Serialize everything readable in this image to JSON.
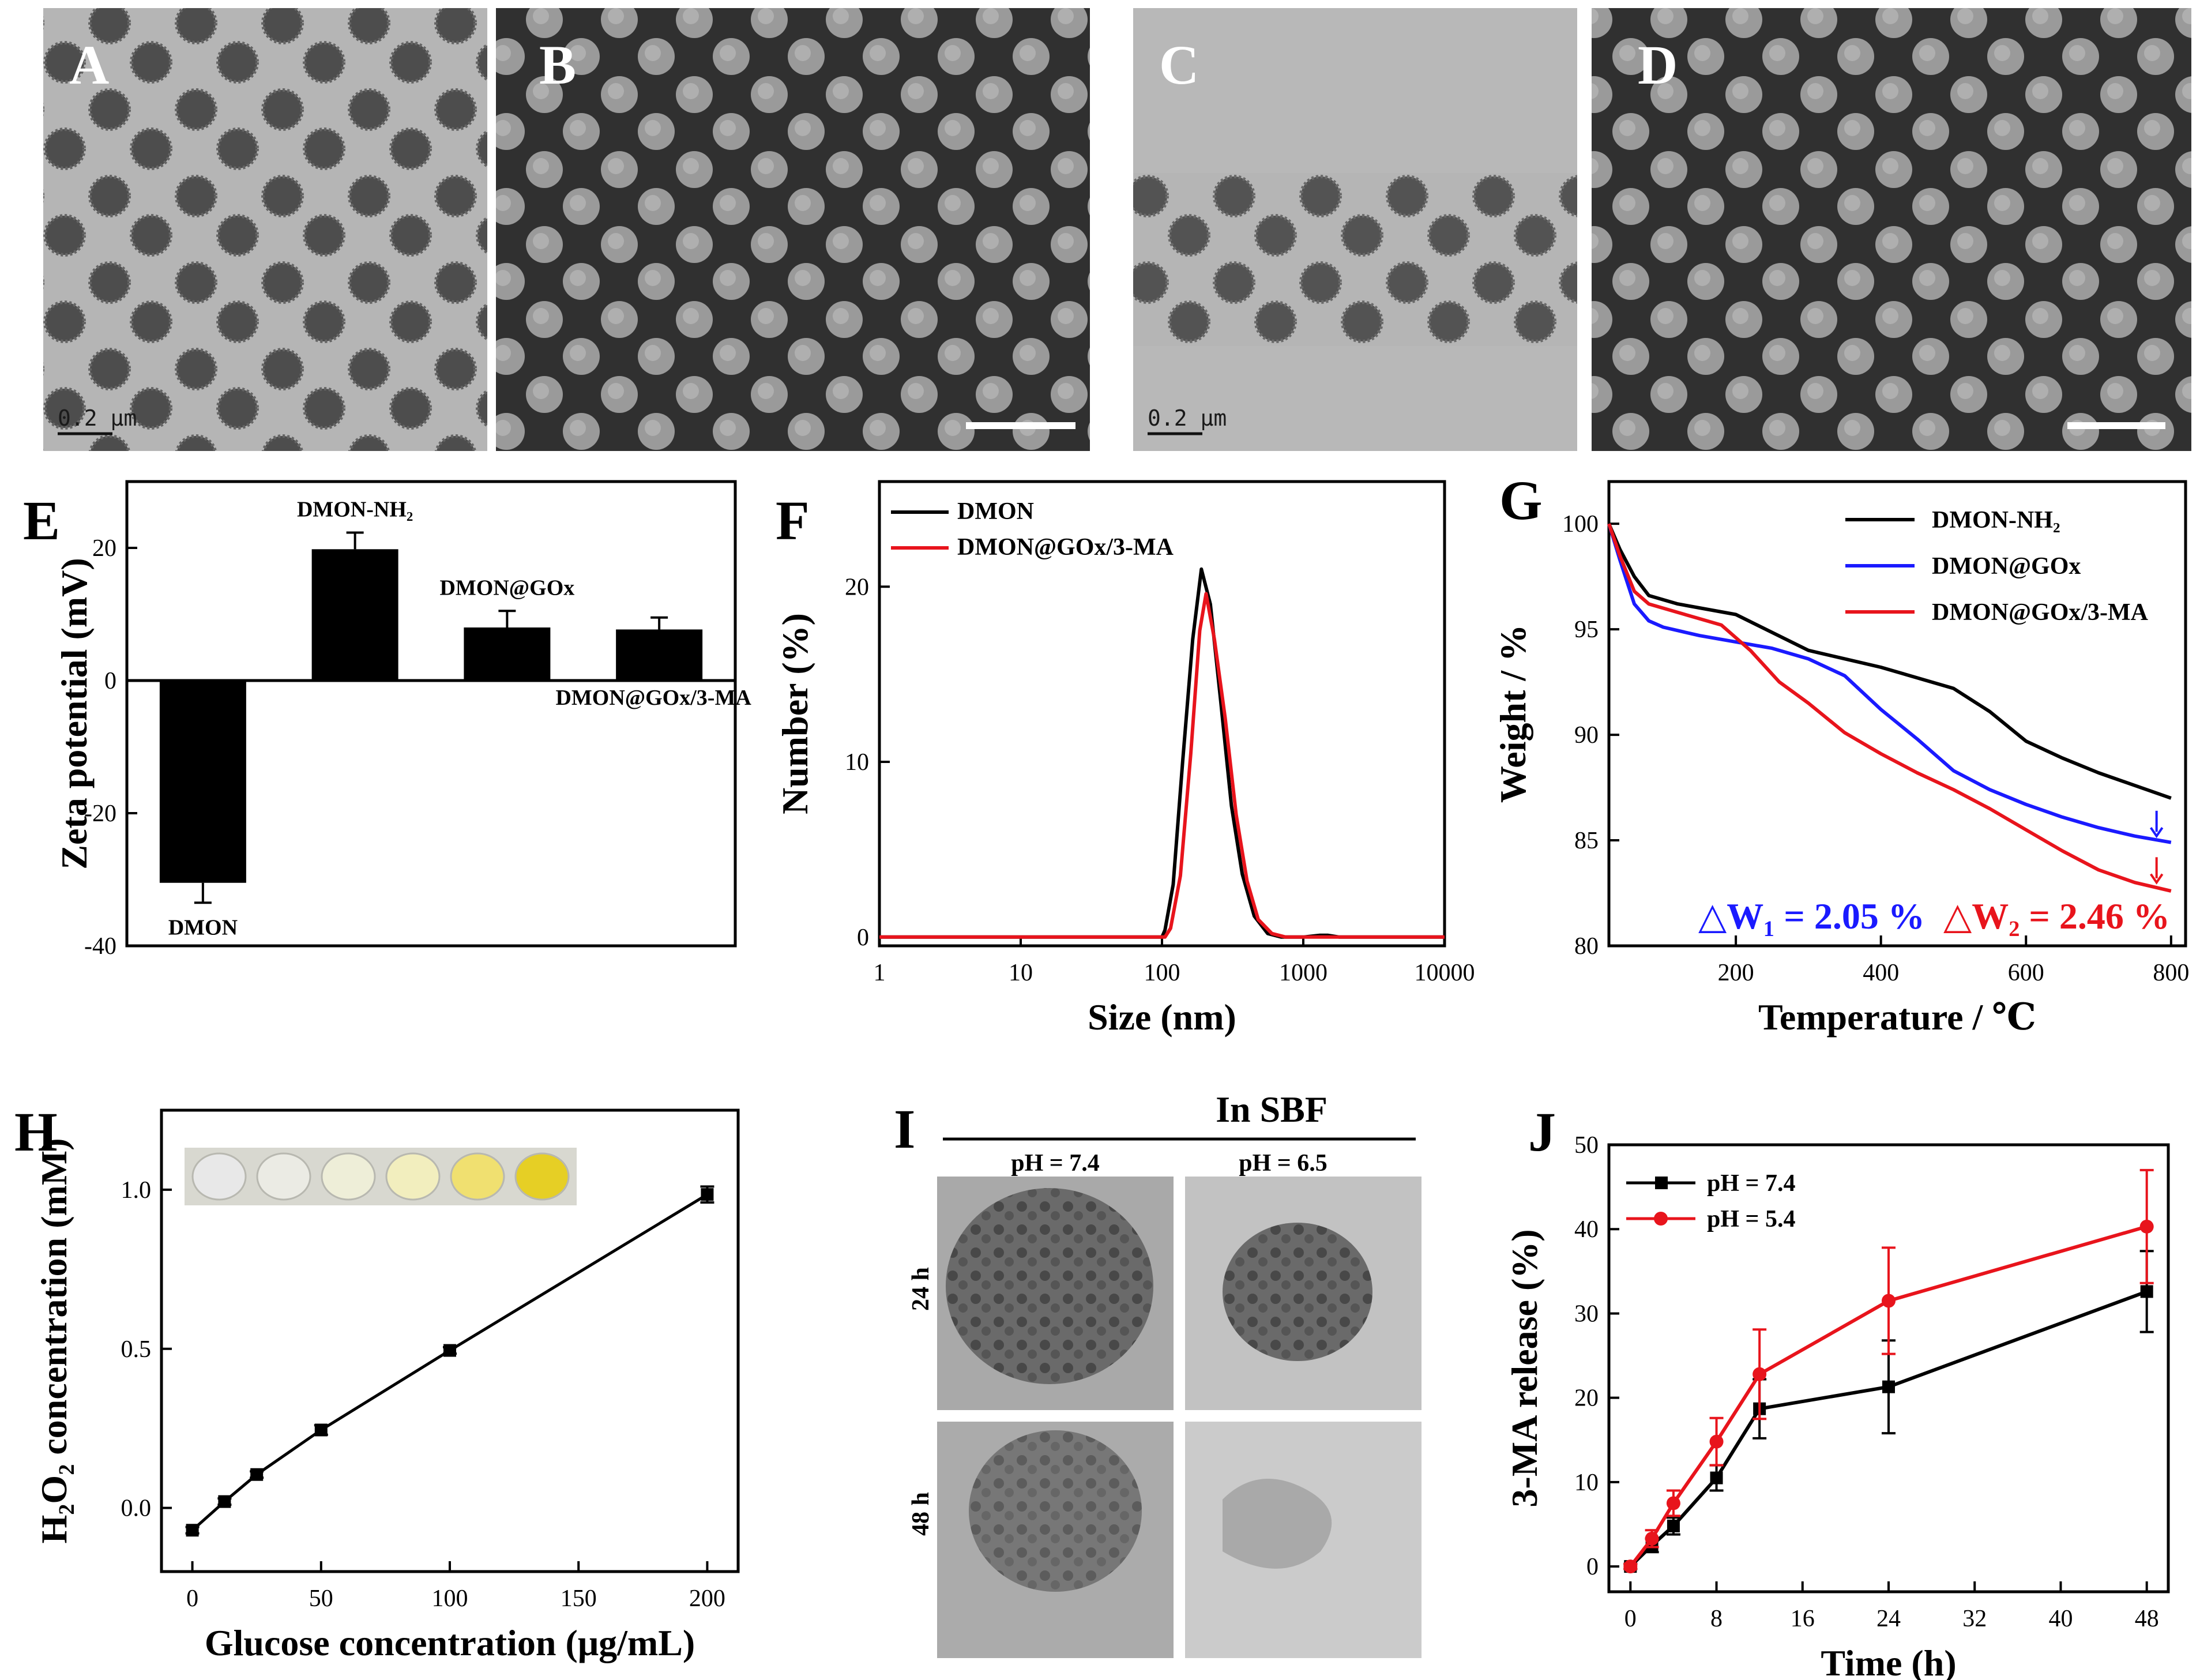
{
  "panels": {
    "A": {
      "label": "A",
      "scale_text": "0.2 μm"
    },
    "B": {
      "label": "B"
    },
    "C": {
      "label": "C",
      "scale_text": "0.2 μm"
    },
    "D": {
      "label": "D"
    },
    "I": {
      "label": "I",
      "title": "In SBF",
      "col_labels": [
        "pH = 7.4",
        "pH = 6.5"
      ],
      "row_labels": [
        "24 h",
        "48 h"
      ]
    }
  },
  "colors": {
    "black": "#000000",
    "red": "#e8141c",
    "blue": "#1a1aff"
  },
  "chart_data": [
    {
      "id": "E",
      "label": "E",
      "type": "bar",
      "ylabel": "Zeta potential (mV)",
      "ylim": [
        -40,
        30
      ],
      "yticks": [
        -40,
        -20,
        0,
        20
      ],
      "categories": [
        "DMON",
        "DMON-NH₂",
        "DMON@GOx",
        "DMON@GOx/3-MA"
      ],
      "values": [
        -30.5,
        19.8,
        8.0,
        7.7
      ],
      "errors": [
        3.0,
        2.5,
        2.5,
        1.8
      ]
    },
    {
      "id": "F",
      "label": "F",
      "type": "line",
      "xlabel": "Size (nm)",
      "ylabel": "Number (%)",
      "xscale": "log",
      "xlim": [
        1,
        10000
      ],
      "ylim": [
        -0.5,
        26
      ],
      "xticks": [
        1,
        10,
        100,
        1000,
        10000
      ],
      "yticks": [
        0,
        10,
        20
      ],
      "legend_position": "top-left",
      "series": [
        {
          "name": "DMON",
          "color": "#000000",
          "x": [
            1,
            100,
            105,
            120,
            140,
            165,
            190,
            220,
            260,
            310,
            370,
            450,
            560,
            700,
            1000,
            1300,
            1500,
            1800,
            10000
          ],
          "y": [
            0,
            0,
            0.4,
            3.0,
            10.0,
            17.0,
            21.0,
            19.0,
            13.5,
            7.5,
            3.6,
            1.2,
            0.2,
            0,
            0,
            0.1,
            0.1,
            0,
            0
          ]
        },
        {
          "name": "DMON@GOx/3-MA",
          "color": "#e8141c",
          "x": [
            1,
            105,
            115,
            135,
            160,
            185,
            205,
            235,
            280,
            335,
            400,
            480,
            600,
            750,
            1000,
            10000
          ],
          "y": [
            0,
            0,
            0.5,
            3.5,
            10.5,
            17.5,
            19.6,
            17.0,
            12.5,
            7.0,
            3.2,
            1.0,
            0.2,
            0,
            0,
            0
          ]
        }
      ]
    },
    {
      "id": "G",
      "label": "G",
      "type": "line",
      "xlabel": "Temperature / ℃",
      "ylabel": "Weight / %",
      "xlim": [
        25,
        820
      ],
      "ylim": [
        80,
        102
      ],
      "xticks": [
        200,
        400,
        600,
        800
      ],
      "yticks": [
        80,
        85,
        90,
        95,
        100
      ],
      "legend_position": "top-right",
      "annotations": [
        {
          "text": "△W₁ = 2.05 %",
          "color": "#1a1aff"
        },
        {
          "text": "△W₂ = 2.46 %",
          "color": "#e8141c"
        }
      ],
      "series": [
        {
          "name": "DMON-NH₂",
          "color": "#000000",
          "x": [
            25,
            40,
            60,
            80,
            120,
            200,
            300,
            400,
            500,
            550,
            600,
            650,
            700,
            750,
            800
          ],
          "y": [
            100,
            98.8,
            97.5,
            96.6,
            96.2,
            95.7,
            94.0,
            93.2,
            92.2,
            91.1,
            89.7,
            88.9,
            88.2,
            87.6,
            87.0
          ]
        },
        {
          "name": "DMON@GOx",
          "color": "#1a1aff",
          "x": [
            25,
            40,
            60,
            80,
            100,
            150,
            200,
            250,
            300,
            350,
            400,
            450,
            500,
            550,
            600,
            650,
            700,
            750,
            800
          ],
          "y": [
            100,
            98.3,
            96.2,
            95.4,
            95.1,
            94.7,
            94.4,
            94.1,
            93.6,
            92.8,
            91.2,
            89.8,
            88.3,
            87.4,
            86.7,
            86.1,
            85.6,
            85.2,
            84.9
          ]
        },
        {
          "name": "DMON@GOx/3-MA",
          "color": "#e8141c",
          "x": [
            25,
            40,
            60,
            80,
            120,
            180,
            220,
            260,
            300,
            350,
            400,
            450,
            500,
            550,
            600,
            650,
            700,
            750,
            800
          ],
          "y": [
            100,
            98.5,
            96.8,
            96.2,
            95.8,
            95.2,
            94.0,
            92.5,
            91.5,
            90.1,
            89.1,
            88.2,
            87.4,
            86.5,
            85.5,
            84.5,
            83.6,
            83.0,
            82.6
          ]
        }
      ]
    },
    {
      "id": "H",
      "label": "H",
      "type": "line",
      "xlabel": "Glucose concentration (μg/mL)",
      "ylabel": "H₂O₂ concentration (mM)",
      "xlim": [
        -12,
        212
      ],
      "ylim": [
        -0.2,
        1.25
      ],
      "xticks": [
        0,
        50,
        100,
        150,
        200
      ],
      "yticks": [
        0.0,
        0.5,
        1.0
      ],
      "series": [
        {
          "name": "H2O2",
          "color": "#000000",
          "x": [
            0,
            12.5,
            25,
            50,
            100,
            200
          ],
          "y": [
            -0.07,
            0.02,
            0.105,
            0.245,
            0.495,
            0.985
          ],
          "errors": [
            0.01,
            0.01,
            0.01,
            0.015,
            0.01,
            0.025
          ]
        }
      ]
    },
    {
      "id": "J",
      "label": "J",
      "type": "line",
      "xlabel": "Time (h)",
      "ylabel": "3-MA release (%)",
      "xlim": [
        -2,
        50
      ],
      "ylim": [
        -3,
        50
      ],
      "xticks": [
        0,
        8,
        16,
        24,
        32,
        40,
        48
      ],
      "yticks": [
        0,
        10,
        20,
        30,
        40,
        50
      ],
      "legend_position": "top-left",
      "series": [
        {
          "name": "pH = 7.4",
          "color": "#000000",
          "x": [
            0,
            2,
            4,
            8,
            12,
            24,
            48
          ],
          "y": [
            0,
            2.5,
            4.8,
            10.5,
            18.7,
            21.3,
            32.6
          ],
          "errors": [
            0.3,
            0.8,
            1.0,
            1.5,
            3.5,
            5.5,
            4.8
          ]
        },
        {
          "name": "pH = 5.4",
          "color": "#e8141c",
          "x": [
            0,
            2,
            4,
            8,
            12,
            24,
            48
          ],
          "y": [
            0,
            3.3,
            7.5,
            14.8,
            22.8,
            31.5,
            40.3
          ],
          "errors": [
            0.3,
            1.0,
            1.5,
            2.8,
            5.3,
            6.3,
            6.7
          ]
        }
      ]
    }
  ]
}
